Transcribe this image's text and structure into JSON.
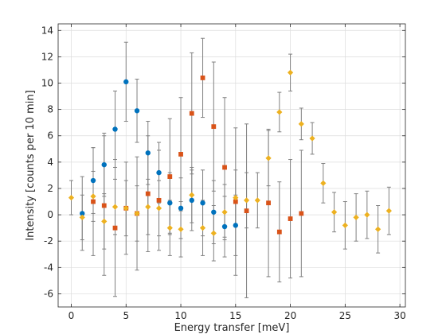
{
  "chart_data": {
    "type": "scatter",
    "xlabel": "Energy transfer [meV]",
    "ylabel": "Intensity [counts per 10 min]",
    "xlim": [
      -1.2,
      30.5
    ],
    "ylim": [
      -7,
      14.5
    ],
    "xticks": [
      0,
      5,
      10,
      15,
      20,
      25,
      30
    ],
    "yticks": [
      -6,
      -4,
      -2,
      0,
      2,
      4,
      6,
      8,
      10,
      12,
      14
    ],
    "grid": true,
    "legend": "none",
    "errorbar_color": "#808080",
    "series": [
      {
        "marker": "circle",
        "color": "#0072BD",
        "points": [
          {
            "x": 1,
            "y": 0.1,
            "err": 2.8
          },
          {
            "x": 2,
            "y": 2.6,
            "err": 2.5
          },
          {
            "x": 3,
            "y": 3.8,
            "err": 2.4
          },
          {
            "x": 4,
            "y": 6.5,
            "err": 2.9
          },
          {
            "x": 5,
            "y": 10.1,
            "err": 3.0
          },
          {
            "x": 6,
            "y": 7.9,
            "err": 2.4
          },
          {
            "x": 7,
            "y": 4.7,
            "err": 2.4
          },
          {
            "x": 8,
            "y": 3.2,
            "err": 2.3
          },
          {
            "x": 9,
            "y": 0.9,
            "err": 2.3
          },
          {
            "x": 10,
            "y": 0.5,
            "err": 2.3
          },
          {
            "x": 11,
            "y": 1.1,
            "err": 2.3
          },
          {
            "x": 12,
            "y": 0.9,
            "err": 2.5
          },
          {
            "x": 13,
            "y": 0.2,
            "err": 2.4
          },
          {
            "x": 14,
            "y": -0.9,
            "err": 2.3
          },
          {
            "x": 15,
            "y": -0.8,
            "err": 2.3
          }
        ]
      },
      {
        "marker": "square",
        "color": "#D95319",
        "points": [
          {
            "x": 2,
            "y": 1.0,
            "err": 4.1
          },
          {
            "x": 3,
            "y": 0.7,
            "err": 5.3
          },
          {
            "x": 4,
            "y": -1.0,
            "err": 5.2
          },
          {
            "x": 5,
            "y": 0.5,
            "err": 3.5
          },
          {
            "x": 6,
            "y": 0.1,
            "err": 4.3
          },
          {
            "x": 7,
            "y": 1.6,
            "err": 4.4
          },
          {
            "x": 8,
            "y": 1.1,
            "err": 3.8
          },
          {
            "x": 9,
            "y": 2.9,
            "err": 4.4
          },
          {
            "x": 10,
            "y": 4.6,
            "err": 4.3
          },
          {
            "x": 11,
            "y": 7.7,
            "err": 4.6
          },
          {
            "x": 12,
            "y": 10.4,
            "err": 3.0
          },
          {
            "x": 13,
            "y": 6.7,
            "err": 4.9
          },
          {
            "x": 14,
            "y": 3.6,
            "err": 5.3
          },
          {
            "x": 15,
            "y": 1.0,
            "err": 5.6
          },
          {
            "x": 16,
            "y": 0.3,
            "err": 6.6
          },
          {
            "x": 18,
            "y": 0.9,
            "err": 5.6
          },
          {
            "x": 19,
            "y": -1.3,
            "err": 3.8
          },
          {
            "x": 20,
            "y": -0.3,
            "err": 4.5
          },
          {
            "x": 21,
            "y": 0.1,
            "err": 4.8
          }
        ]
      },
      {
        "marker": "diamond",
        "color": "#EDB120",
        "points": [
          {
            "x": 0,
            "y": 1.3,
            "err": 1.3
          },
          {
            "x": 1,
            "y": -0.2,
            "err": 1.7
          },
          {
            "x": 2,
            "y": 1.4,
            "err": 1.9
          },
          {
            "x": 3,
            "y": -0.5,
            "err": 2.1
          },
          {
            "x": 4,
            "y": 0.6,
            "err": 2.1
          },
          {
            "x": 5,
            "y": 0.5,
            "err": 2.1
          },
          {
            "x": 6,
            "y": 0.1,
            "err": 2.1
          },
          {
            "x": 7,
            "y": 0.6,
            "err": 2.1
          },
          {
            "x": 8,
            "y": 0.5,
            "err": 2.1
          },
          {
            "x": 9,
            "y": -1.0,
            "err": 2.1
          },
          {
            "x": 10,
            "y": -1.1,
            "err": 2.1
          },
          {
            "x": 11,
            "y": 1.5,
            "err": 2.1
          },
          {
            "x": 12,
            "y": -1.0,
            "err": 2.1
          },
          {
            "x": 13,
            "y": -1.4,
            "err": 2.1
          },
          {
            "x": 14,
            "y": 0.2,
            "err": 2.1
          },
          {
            "x": 15,
            "y": 1.3,
            "err": 2.1
          },
          {
            "x": 16,
            "y": 1.1,
            "err": 2.1
          },
          {
            "x": 17,
            "y": 1.1,
            "err": 2.1
          },
          {
            "x": 18,
            "y": 4.3,
            "err": 2.1
          },
          {
            "x": 19,
            "y": 7.8,
            "err": 1.5
          },
          {
            "x": 20,
            "y": 10.8,
            "err": 1.4
          },
          {
            "x": 21,
            "y": 6.9,
            "err": 1.2
          },
          {
            "x": 22,
            "y": 5.8,
            "err": 1.2
          },
          {
            "x": 23,
            "y": 2.4,
            "err": 1.5
          },
          {
            "x": 24,
            "y": 0.2,
            "err": 1.5
          },
          {
            "x": 25,
            "y": -0.8,
            "err": 1.8
          },
          {
            "x": 26,
            "y": -0.2,
            "err": 1.8
          },
          {
            "x": 27,
            "y": 0.0,
            "err": 1.8
          },
          {
            "x": 28,
            "y": -1.1,
            "err": 1.8
          },
          {
            "x": 29,
            "y": 0.3,
            "err": 1.8
          }
        ]
      }
    ]
  }
}
